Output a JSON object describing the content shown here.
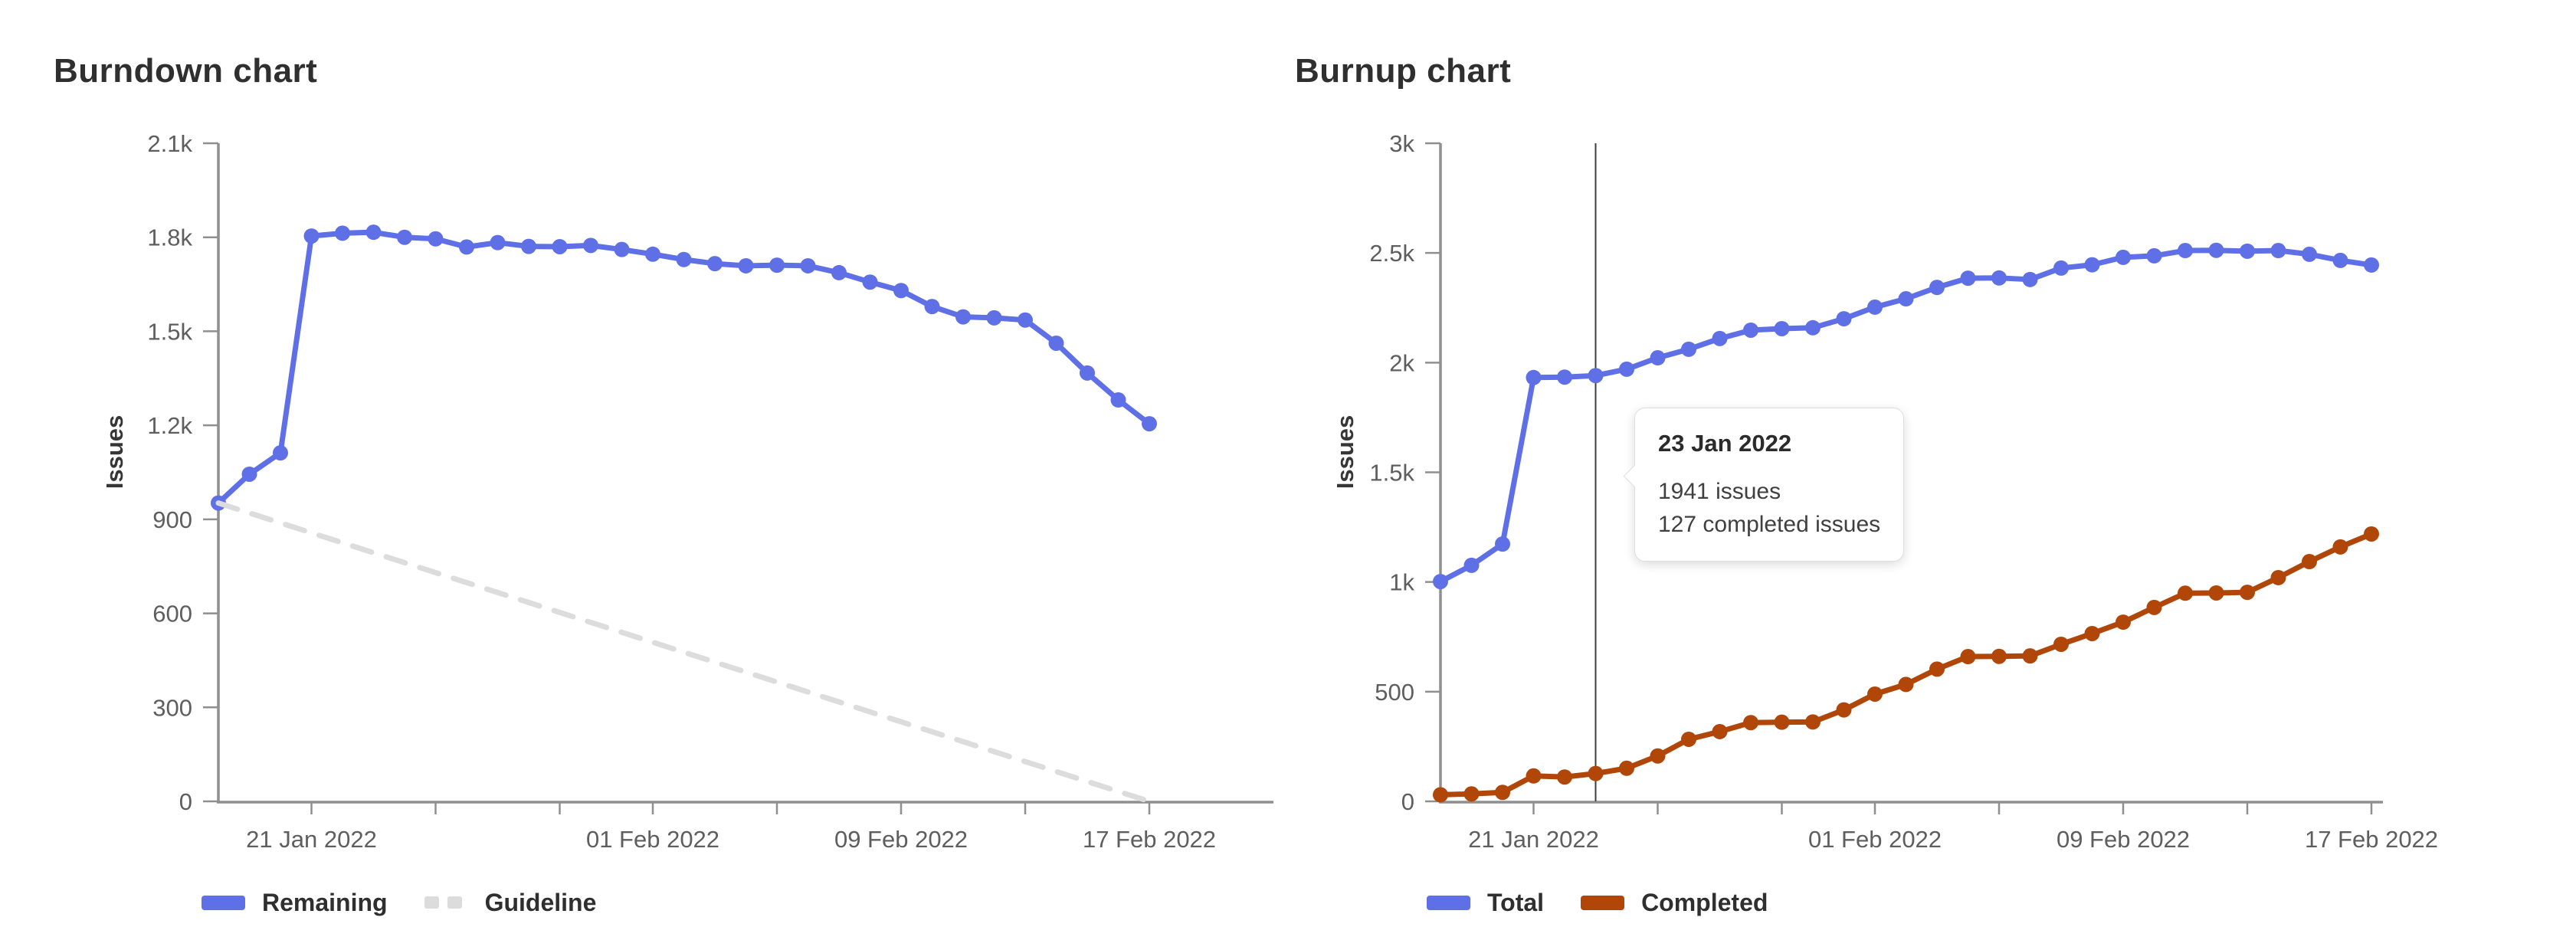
{
  "colors": {
    "blue": "#5f70e6",
    "orange": "#b04708",
    "guideline": "#dcdcdc",
    "axis": "#8f8f8f",
    "tick_text": "#5e5e5e",
    "hover_line": "#3d3d3d"
  },
  "chart_data": [
    {
      "type": "line",
      "title": "Burndown chart",
      "ylabel": "Issues",
      "ylim": [
        0,
        2100
      ],
      "ytick_values": [
        0,
        300,
        600,
        900,
        1200,
        1500,
        1800,
        2100
      ],
      "ytick_labels": [
        "0",
        "300",
        "600",
        "900",
        "1.2k",
        "1.5k",
        "1.8k",
        "2.1k"
      ],
      "x_dates": [
        "18 Jan 2022",
        "19 Jan 2022",
        "20 Jan 2022",
        "21 Jan 2022",
        "22 Jan 2022",
        "23 Jan 2022",
        "24 Jan 2022",
        "25 Jan 2022",
        "26 Jan 2022",
        "27 Jan 2022",
        "28 Jan 2022",
        "29 Jan 2022",
        "30 Jan 2022",
        "31 Jan 2022",
        "01 Feb 2022",
        "02 Feb 2022",
        "03 Feb 2022",
        "04 Feb 2022",
        "05 Feb 2022",
        "06 Feb 2022",
        "07 Feb 2022",
        "08 Feb 2022",
        "09 Feb 2022",
        "10 Feb 2022",
        "11 Feb 2022",
        "12 Feb 2022",
        "13 Feb 2022",
        "14 Feb 2022",
        "15 Feb 2022",
        "16 Feb 2022",
        "17 Feb 2022"
      ],
      "xtick_day_indices": [
        3,
        7,
        11,
        14,
        18,
        22,
        26,
        30
      ],
      "xtick_labels": {
        "3": "21 Jan 2022",
        "14": "01 Feb 2022",
        "22": "09 Feb 2022",
        "30": "17 Feb 2022"
      },
      "legend_position": "bottom",
      "grid": false,
      "series": [
        {
          "name": "Remaining",
          "color": "#5f70e6",
          "values": [
            952,
            1044,
            1112,
            1804,
            1813,
            1816,
            1800,
            1795,
            1769,
            1783,
            1771,
            1770,
            1774,
            1761,
            1746,
            1729,
            1716,
            1709,
            1711,
            1709,
            1687,
            1657,
            1630,
            1579,
            1546,
            1543,
            1536,
            1462,
            1367,
            1281,
            1205
          ]
        },
        {
          "name": "Guideline",
          "color": "#dcdcdc",
          "dashed": true,
          "marker": false,
          "x_days": [
            0,
            30
          ],
          "values": [
            952,
            0
          ]
        }
      ]
    },
    {
      "type": "line",
      "title": "Burnup chart",
      "ylabel": "Issues",
      "ylim": [
        0,
        3000
      ],
      "ytick_values": [
        0,
        500,
        1000,
        1500,
        2000,
        2500,
        3000
      ],
      "ytick_labels": [
        "0",
        "500",
        "1k",
        "1.5k",
        "2k",
        "2.5k",
        "3k"
      ],
      "x_dates": [
        "18 Jan 2022",
        "19 Jan 2022",
        "20 Jan 2022",
        "21 Jan 2022",
        "22 Jan 2022",
        "23 Jan 2022",
        "24 Jan 2022",
        "25 Jan 2022",
        "26 Jan 2022",
        "27 Jan 2022",
        "28 Jan 2022",
        "29 Jan 2022",
        "30 Jan 2022",
        "31 Jan 2022",
        "01 Feb 2022",
        "02 Feb 2022",
        "03 Feb 2022",
        "04 Feb 2022",
        "05 Feb 2022",
        "06 Feb 2022",
        "07 Feb 2022",
        "08 Feb 2022",
        "09 Feb 2022",
        "10 Feb 2022",
        "11 Feb 2022",
        "12 Feb 2022",
        "13 Feb 2022",
        "14 Feb 2022",
        "15 Feb 2022",
        "16 Feb 2022",
        "17 Feb 2022"
      ],
      "xtick_day_indices": [
        3,
        7,
        11,
        14,
        18,
        22,
        26,
        30
      ],
      "xtick_labels": {
        "3": "21 Jan 2022",
        "14": "01 Feb 2022",
        "22": "09 Feb 2022",
        "30": "17 Feb 2022"
      },
      "legend_position": "bottom",
      "grid": false,
      "series": [
        {
          "name": "Total",
          "color": "#5f70e6",
          "values": [
            1002,
            1076,
            1173,
            1932,
            1934,
            1941,
            1970,
            2022,
            2061,
            2110,
            2148,
            2155,
            2159,
            2200,
            2253,
            2291,
            2343,
            2385,
            2386,
            2379,
            2431,
            2446,
            2480,
            2487,
            2511,
            2512,
            2508,
            2511,
            2494,
            2466,
            2445
          ]
        },
        {
          "name": "Completed",
          "color": "#b04708",
          "values": [
            30,
            34,
            41,
            116,
            111,
            127,
            151,
            207,
            283,
            318,
            359,
            361,
            362,
            417,
            489,
            533,
            603,
            660,
            661,
            663,
            716,
            765,
            817,
            884,
            949,
            950,
            953,
            1020,
            1093,
            1160,
            1219
          ]
        }
      ],
      "hover": {
        "day_index": 5,
        "date": "23 Jan 2022",
        "total_label": "1941 issues",
        "completed_label": "127 completed issues"
      }
    }
  ]
}
